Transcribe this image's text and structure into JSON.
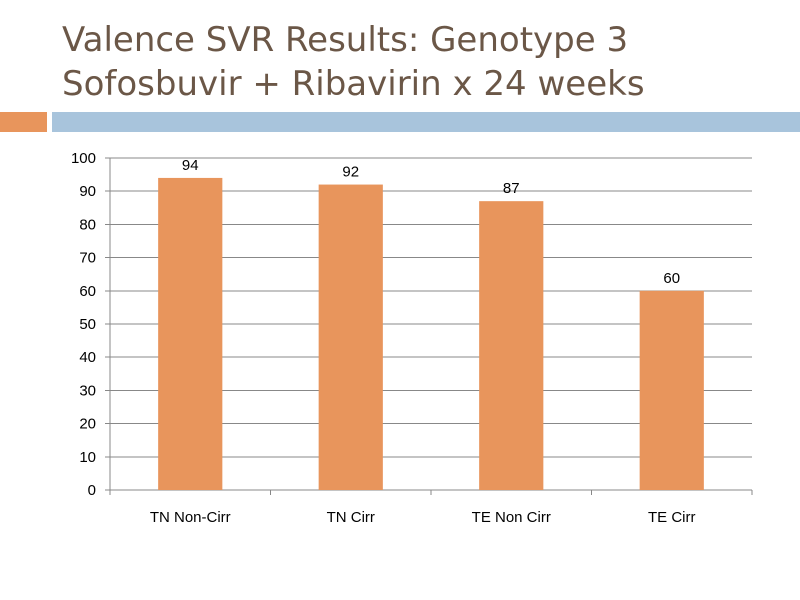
{
  "slide": {
    "title_line1": "Valence SVR Results: Genotype 3",
    "title_line2": "Sofosbuvir + Ribavirin x 24 weeks"
  },
  "colors": {
    "title": "#6b5747",
    "accent_orange": "#e8955c",
    "accent_blue": "#a8c4dc",
    "bar": "#e8955c",
    "grid": "#888888"
  },
  "chart_data": {
    "type": "bar",
    "categories": [
      "TN Non-Cirr",
      "TN Cirr",
      "TE Non Cirr",
      "TE Cirr"
    ],
    "values": [
      94,
      92,
      87,
      60
    ],
    "data_labels": [
      "94",
      "92",
      "87",
      "60"
    ],
    "yticks": [
      "0",
      "10",
      "20",
      "30",
      "40",
      "50",
      "60",
      "70",
      "80",
      "90",
      "100"
    ],
    "ylim": [
      0,
      100
    ],
    "grid": true,
    "legend": "none"
  }
}
